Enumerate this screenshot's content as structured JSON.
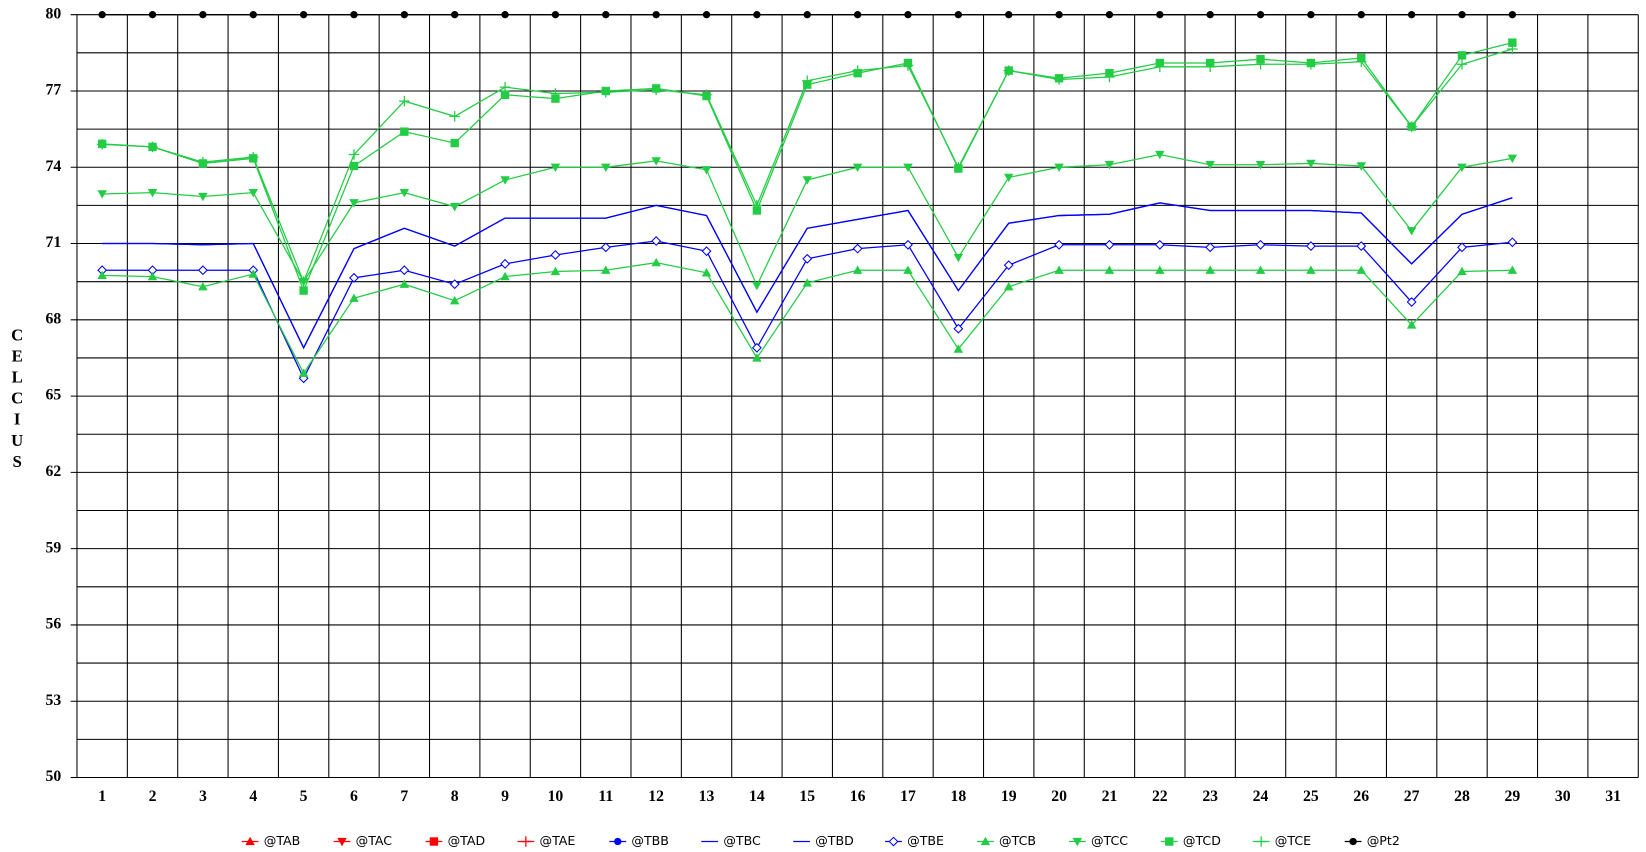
{
  "chart_data": {
    "type": "line",
    "y_label": "CELCIUS",
    "categories": [
      "1",
      "2",
      "3",
      "4",
      "5",
      "6",
      "7",
      "8",
      "9",
      "10",
      "11",
      "12",
      "13",
      "14",
      "15",
      "16",
      "17",
      "18",
      "19",
      "20",
      "21",
      "22",
      "23",
      "24",
      "25",
      "26",
      "27",
      "28",
      "29",
      "30",
      "31"
    ],
    "ylim": [
      50,
      80
    ],
    "yticks": [
      50,
      53,
      56,
      59,
      62,
      65,
      68,
      71,
      74,
      77,
      80
    ],
    "minor_yticks": [
      51.5,
      54.5,
      57.5,
      60.5,
      63.5,
      66.5,
      69.5,
      72.5,
      75.5,
      78.5
    ],
    "grid": true,
    "legend": "bottom",
    "series": [
      {
        "name": "@TAB",
        "color": "#ff0000",
        "marker": "triangle-up",
        "values": [
          null,
          null,
          null,
          null,
          null,
          null,
          null,
          null,
          null,
          null,
          null,
          null,
          null,
          null,
          null,
          null,
          null,
          null,
          null,
          null,
          null,
          null,
          null,
          null,
          null,
          null,
          null,
          null,
          null,
          null,
          null
        ]
      },
      {
        "name": "@TAC",
        "color": "#ff0000",
        "marker": "triangle-down",
        "values": [
          null,
          null,
          null,
          null,
          null,
          null,
          null,
          null,
          null,
          null,
          null,
          null,
          null,
          null,
          null,
          null,
          null,
          null,
          null,
          null,
          null,
          null,
          null,
          null,
          null,
          null,
          null,
          null,
          null,
          null,
          null
        ]
      },
      {
        "name": "@TAD",
        "color": "#ff0000",
        "marker": "square",
        "values": [
          null,
          null,
          null,
          null,
          null,
          null,
          null,
          null,
          null,
          null,
          null,
          null,
          null,
          null,
          null,
          null,
          null,
          null,
          null,
          null,
          null,
          null,
          null,
          null,
          null,
          null,
          null,
          null,
          null,
          null,
          null
        ]
      },
      {
        "name": "@TAE",
        "color": "#ff0000",
        "marker": "plus",
        "values": [
          null,
          null,
          null,
          null,
          null,
          null,
          null,
          null,
          null,
          null,
          null,
          null,
          null,
          null,
          null,
          null,
          null,
          null,
          null,
          null,
          null,
          null,
          null,
          null,
          null,
          null,
          null,
          null,
          null,
          null,
          null
        ]
      },
      {
        "name": "@TBB",
        "color": "#0000ff",
        "marker": "circle",
        "values": [
          null,
          null,
          null,
          null,
          null,
          null,
          null,
          null,
          null,
          null,
          null,
          null,
          null,
          null,
          null,
          null,
          null,
          null,
          null,
          null,
          null,
          null,
          null,
          null,
          null,
          null,
          null,
          null,
          null,
          null,
          null
        ]
      },
      {
        "name": "@TBC",
        "color": "#0000ff",
        "marker": "none",
        "values": [
          71,
          71,
          70.95,
          71,
          66.9,
          70.8,
          71.6,
          70.9,
          72,
          72,
          72,
          72.5,
          72.1,
          68.3,
          71.6,
          71.95,
          72.3,
          69.15,
          71.8,
          72.1,
          72.15,
          72.6,
          72.3,
          72.3,
          72.3,
          72.2,
          70.2,
          72.15,
          72.8,
          null,
          null
        ]
      },
      {
        "name": "@TBD",
        "color": "#0000ff",
        "marker": "none",
        "values": [
          71,
          71,
          70.95,
          71,
          66.9,
          70.8,
          71.6,
          70.9,
          72,
          72,
          72,
          72.5,
          72.1,
          68.3,
          71.6,
          71.95,
          72.3,
          69.15,
          71.8,
          72.1,
          72.15,
          72.6,
          72.3,
          72.3,
          72.3,
          72.2,
          70.2,
          72.15,
          72.8,
          null,
          null
        ]
      },
      {
        "name": "@TBE",
        "color": "#0000ff",
        "marker": "diamond",
        "values": [
          69.95,
          69.95,
          69.95,
          69.95,
          65.7,
          69.65,
          69.95,
          69.4,
          70.2,
          70.55,
          70.85,
          71.1,
          70.7,
          66.9,
          70.4,
          70.8,
          70.95,
          67.65,
          70.15,
          70.95,
          70.95,
          70.95,
          70.85,
          70.95,
          70.9,
          70.9,
          68.7,
          70.85,
          71.05,
          null,
          null
        ]
      },
      {
        "name": "@TCB",
        "color": "#22cc44",
        "marker": "triangle-up",
        "values": [
          69.75,
          69.7,
          69.3,
          69.8,
          65.9,
          68.85,
          69.4,
          68.75,
          69.7,
          69.9,
          69.95,
          70.25,
          69.85,
          66.5,
          69.45,
          69.95,
          69.95,
          66.85,
          69.3,
          69.95,
          69.95,
          69.95,
          69.95,
          69.95,
          69.95,
          69.95,
          67.8,
          69.9,
          69.95,
          null,
          null
        ]
      },
      {
        "name": "@TCC",
        "color": "#22cc44",
        "marker": "triangle-down",
        "values": [
          72.95,
          73,
          72.85,
          73,
          69.5,
          72.6,
          73,
          72.45,
          73.5,
          74,
          74,
          74.25,
          73.9,
          69.35,
          73.5,
          74,
          74,
          70.45,
          73.6,
          74,
          74.1,
          74.5,
          74.1,
          74.1,
          74.15,
          74.05,
          71.5,
          74,
          74.35,
          null,
          null
        ]
      },
      {
        "name": "@TCD",
        "color": "#22cc44",
        "marker": "square",
        "values": [
          74.92,
          74.8,
          74.15,
          74.35,
          69.15,
          74.05,
          75.4,
          74.95,
          76.85,
          76.7,
          77,
          77.1,
          76.8,
          72.3,
          77.25,
          77.7,
          78.1,
          73.95,
          77.8,
          77.5,
          77.7,
          78.1,
          78.1,
          78.25,
          78.1,
          78.3,
          75.6,
          78.4,
          78.9,
          null,
          null
        ]
      },
      {
        "name": "@TCE",
        "color": "#22cc44",
        "marker": "plus",
        "values": [
          74.9,
          74.8,
          74.2,
          74.4,
          69.5,
          74.5,
          76.6,
          76,
          77.15,
          76.9,
          76.95,
          77.05,
          76.85,
          72.5,
          77.4,
          77.8,
          78,
          74,
          77.8,
          77.45,
          77.55,
          77.95,
          77.95,
          78.05,
          78.05,
          78.15,
          75.6,
          78.05,
          78.65,
          null,
          null
        ]
      },
      {
        "name": "@Pt2",
        "color": "#000000",
        "marker": "circle",
        "values": [
          80,
          80,
          80,
          80,
          80,
          80,
          80,
          80,
          80,
          80,
          80,
          80,
          80,
          80,
          80,
          80,
          80,
          80,
          80,
          80,
          80,
          80,
          80,
          80,
          80,
          80,
          80,
          80,
          80,
          null,
          null
        ]
      }
    ]
  }
}
